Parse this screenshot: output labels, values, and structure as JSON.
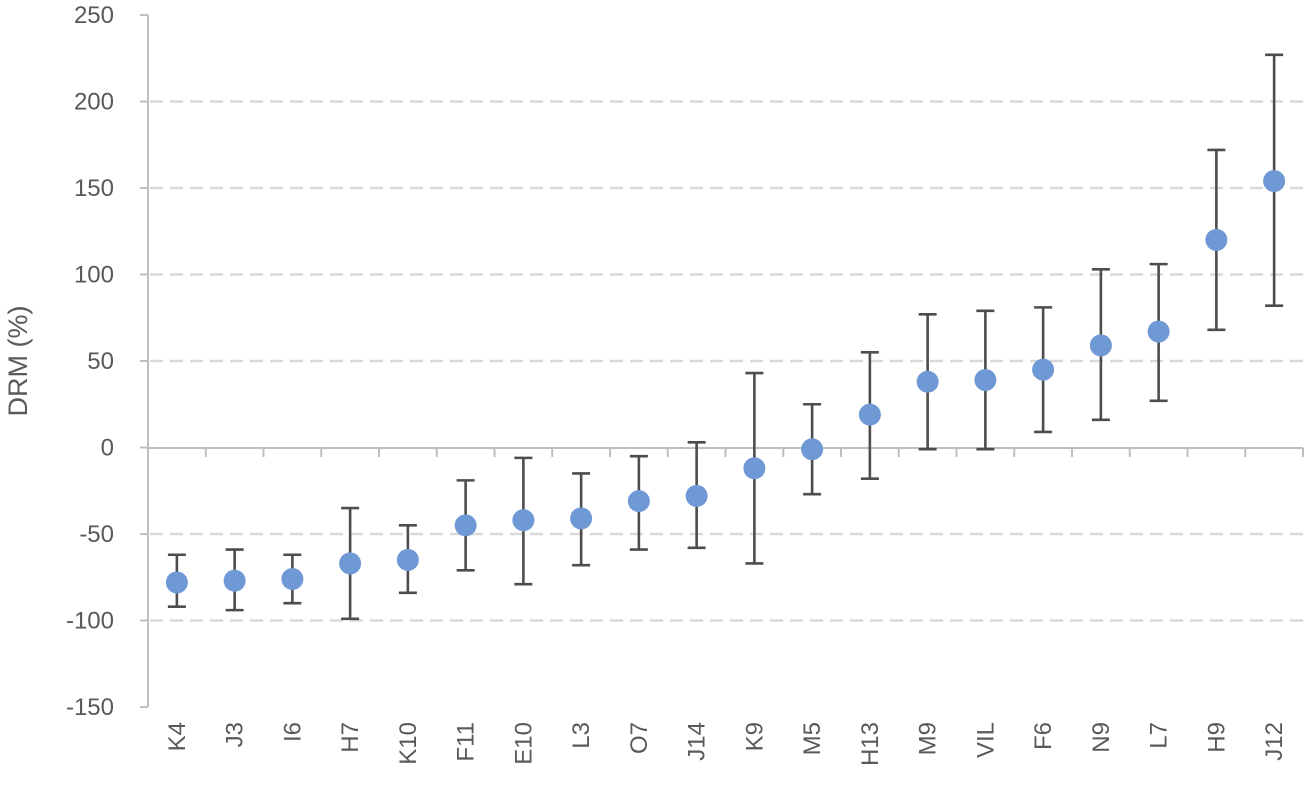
{
  "colors": {
    "point": "#6f99d5",
    "error_bar": "#4d4d4d",
    "grid": "#d9d9d9",
    "axis": "#bfbfbf",
    "text": "#595959"
  },
  "chart_data": {
    "type": "scatter",
    "title": "",
    "xlabel": "",
    "ylabel": "DRM (%)",
    "ylim": [
      -150,
      250
    ],
    "yticks": [
      250,
      200,
      150,
      100,
      50,
      0,
      -50,
      -100,
      -150
    ],
    "grid": true,
    "gridlines": [
      200,
      150,
      100,
      50,
      -50,
      -100
    ],
    "categories": [
      "K4",
      "J3",
      "I6",
      "H7",
      "K10",
      "F11",
      "E10",
      "L3",
      "O7",
      "J14",
      "K9",
      "M5",
      "H13",
      "M9",
      "VIL",
      "F6",
      "N9",
      "L7",
      "H9",
      "J12"
    ],
    "values": [
      -78,
      -77,
      -76,
      -67,
      -65,
      -45,
      -42,
      -41,
      -31,
      -28,
      -12,
      -1,
      19,
      38,
      39,
      45,
      59,
      67,
      120,
      154
    ],
    "error_low": [
      -92,
      -94,
      -90,
      -99,
      -84,
      -71,
      -79,
      -68,
      -59,
      -58,
      -67,
      -27,
      -18,
      -1,
      -1,
      9,
      16,
      27,
      68,
      82
    ],
    "error_high": [
      -62,
      -59,
      -62,
      -35,
      -45,
      -19,
      -6,
      -15,
      -5,
      3,
      43,
      25,
      55,
      77,
      79,
      81,
      103,
      106,
      172,
      227
    ]
  }
}
